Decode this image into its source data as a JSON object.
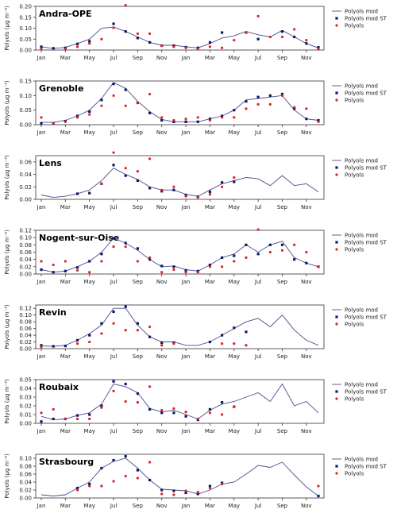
{
  "chart_data": [
    {
      "type": "line",
      "title": "Andra-OPE",
      "ylabel": "Polyols (µg m⁻³)",
      "ylim": [
        0,
        0.2
      ],
      "yticks": [
        "0.00",
        "0.05",
        "0.10",
        "0.15",
        "0.20"
      ],
      "xticks": [
        "Jan",
        "Mar",
        "May",
        "Jul",
        "Sep",
        "Nov",
        "Jan",
        "Mar",
        "May",
        "Jul",
        "Sep",
        "Nov"
      ],
      "legend": [
        "Polyols mod",
        "Polyols mod ST",
        "Polyols"
      ],
      "mod": [
        0.015,
        0.007,
        0.012,
        0.03,
        0.05,
        0.1,
        0.105,
        0.085,
        0.06,
        0.035,
        0.022,
        0.022,
        0.015,
        0.01,
        0.03,
        0.055,
        0.065,
        0.085,
        0.07,
        0.06,
        0.09,
        0.06,
        0.03,
        0.01
      ],
      "mod_st": [
        0.015,
        0.008,
        0.01,
        0.028,
        0.04,
        null,
        0.12,
        0.085,
        0.055,
        0.035,
        0.02,
        0.02,
        0.013,
        0.01,
        0.035,
        0.08,
        null,
        0.08,
        0.05,
        null,
        0.085,
        0.06,
        0.03,
        0.012
      ],
      "obs": [
        0.005,
        null,
        0.005,
        0.015,
        0.03,
        0.05,
        0.102,
        0.205,
        0.075,
        0.075,
        0.02,
        0.015,
        0.01,
        0.005,
        0.015,
        0.01,
        0.045,
        0.08,
        0.155,
        0.06,
        0.06,
        0.095,
        0.045,
        0.005
      ]
    },
    {
      "type": "line",
      "title": "Grenoble",
      "ylabel": "Polyols (µg m⁻³)",
      "ylim": [
        0,
        0.15
      ],
      "yticks": [
        "0.00",
        "0.05",
        "0.10",
        "0.15"
      ],
      "xticks": [
        "Jan",
        "Mar",
        "May",
        "Jul",
        "Sep",
        "Nov",
        "Jan",
        "Mar",
        "May",
        "Jul",
        "Sep",
        "Nov"
      ],
      "legend": [
        "Polyols mod",
        "Polyols mod ST",
        "Polyols"
      ],
      "mod": [
        0.008,
        0.008,
        0.015,
        0.03,
        0.05,
        0.09,
        0.145,
        0.125,
        0.08,
        0.045,
        0.018,
        0.01,
        0.01,
        0.01,
        0.02,
        0.03,
        0.05,
        0.085,
        0.09,
        0.095,
        0.1,
        0.05,
        0.02,
        0.015
      ],
      "mod_st": [
        0.005,
        0.005,
        0.012,
        0.03,
        0.045,
        0.085,
        0.14,
        0.12,
        0.075,
        0.04,
        0.015,
        0.01,
        0.01,
        0.01,
        0.02,
        0.03,
        0.05,
        0.08,
        0.095,
        0.1,
        0.105,
        0.055,
        0.02,
        0.015
      ],
      "obs": [
        0.025,
        0.005,
        0.01,
        0.025,
        0.035,
        0.065,
        0.1,
        0.065,
        0.075,
        0.105,
        0.025,
        0.015,
        0.02,
        0.025,
        0.015,
        0.025,
        0.025,
        0.055,
        0.07,
        0.07,
        0.1,
        0.06,
        0.055,
        0.01
      ]
    },
    {
      "type": "line",
      "title": "Lens",
      "ylabel": "Polyols (µg m⁻³)",
      "ylim": [
        0,
        0.07
      ],
      "yticks": [
        "0.00",
        "0.02",
        "0.04",
        "0.06"
      ],
      "xticks": [
        "Jan",
        "Mar",
        "May",
        "Jul",
        "Sep",
        "Nov",
        "Jan",
        "Mar",
        "May",
        "Jul",
        "Sep",
        "Nov"
      ],
      "legend": [
        "Polyols mod",
        "Polyols mod ST",
        "Polyols"
      ],
      "mod": [
        0.007,
        0.003,
        0.005,
        0.009,
        0.015,
        0.03,
        0.05,
        0.04,
        0.032,
        0.02,
        0.015,
        0.015,
        0.008,
        0.005,
        0.015,
        0.025,
        0.03,
        0.035,
        0.033,
        0.022,
        0.038,
        0.022,
        0.025,
        0.012
      ],
      "mod_st": [
        null,
        null,
        null,
        0.009,
        0.01,
        0.025,
        0.055,
        0.038,
        0.03,
        0.018,
        0.013,
        0.015,
        0.007,
        0.004,
        0.012,
        0.027,
        0.028,
        null,
        null,
        null,
        null,
        null,
        null,
        null
      ],
      "obs": [
        null,
        null,
        null,
        null,
        null,
        0.025,
        0.075,
        0.05,
        0.045,
        0.065,
        0.015,
        0.02,
        0.005,
        0.003,
        0.008,
        0.02,
        0.035,
        null,
        null,
        null,
        null,
        null,
        null,
        null
      ]
    },
    {
      "type": "line",
      "title": "Nogent-sur-Oise",
      "ylabel": "Polyols (µg m⁻³)",
      "ylim": [
        0,
        0.12
      ],
      "yticks": [
        "0.00",
        "0.02",
        "0.04",
        "0.06",
        "0.08",
        "0.10",
        "0.12"
      ],
      "xticks": [
        "Jan",
        "Mar",
        "May",
        "Jul",
        "Sep",
        "Nov",
        "Jan",
        "Mar",
        "May",
        "Jul",
        "Sep",
        "Nov"
      ],
      "legend": [
        "Polyols mod",
        "Polyols mod ST",
        "Polyols"
      ],
      "mod": [
        0.012,
        0.005,
        0.008,
        0.02,
        0.035,
        0.06,
        0.098,
        0.085,
        0.065,
        0.04,
        0.02,
        0.022,
        0.012,
        0.008,
        0.025,
        0.045,
        0.055,
        0.08,
        0.06,
        0.08,
        0.09,
        0.045,
        0.03,
        0.02
      ],
      "mod_st": [
        0.012,
        0.005,
        0.008,
        0.018,
        0.035,
        0.055,
        0.098,
        0.085,
        0.07,
        0.04,
        0.022,
        0.02,
        0.01,
        0.008,
        0.025,
        0.045,
        0.05,
        0.08,
        0.055,
        0.08,
        0.08,
        0.04,
        0.03,
        0.02
      ],
      "obs": [
        0.035,
        0.025,
        0.035,
        0.01,
        0.005,
        0.035,
        0.075,
        0.075,
        0.035,
        0.045,
        0.005,
        0.012,
        0.005,
        0.005,
        0.02,
        0.02,
        0.035,
        0.045,
        0.122,
        0.06,
        0.065,
        0.08,
        0.06,
        0.02
      ]
    },
    {
      "type": "line",
      "title": "Revin",
      "ylabel": "Polyols (µg m⁻³)",
      "ylim": [
        0,
        0.13
      ],
      "yticks": [
        "0.00",
        "0.02",
        "0.04",
        "0.06",
        "0.08",
        "0.10",
        "0.12"
      ],
      "xticks": [
        "Jan",
        "Mar",
        "May",
        "Jul",
        "Sep",
        "Nov",
        "Jan",
        "Mar",
        "May",
        "Jul",
        "Sep",
        "Nov"
      ],
      "legend": [
        "Polyols mod",
        "Polyols mod ST",
        "Polyols"
      ],
      "mod": [
        0.008,
        0.007,
        0.01,
        0.025,
        0.045,
        0.07,
        0.12,
        0.12,
        0.07,
        0.035,
        0.02,
        0.02,
        0.01,
        0.01,
        0.02,
        0.04,
        0.06,
        0.08,
        0.09,
        0.065,
        0.1,
        0.055,
        0.025,
        0.01
      ],
      "mod_st": [
        0.01,
        0.007,
        0.008,
        0.025,
        0.04,
        0.075,
        0.11,
        0.125,
        0.075,
        0.035,
        0.018,
        0.018,
        null,
        null,
        0.02,
        0.04,
        0.062,
        0.05,
        null,
        null,
        null,
        null,
        null,
        null
      ],
      "obs": [
        0.005,
        null,
        null,
        0.015,
        0.02,
        0.045,
        0.075,
        0.055,
        0.055,
        0.065,
        0.01,
        0.015,
        null,
        null,
        null,
        0.015,
        0.015,
        0.01,
        null,
        null,
        null,
        null,
        null,
        null
      ]
    },
    {
      "type": "line",
      "title": "Roubaix",
      "ylabel": "Polyols (µg m⁻³)",
      "ylim": [
        0,
        0.05
      ],
      "yticks": [
        "0.00",
        "0.01",
        "0.02",
        "0.03",
        "0.04",
        "0.05"
      ],
      "xticks": [
        "Jan",
        "Mar",
        "May",
        "Jul",
        "Sep",
        "Nov",
        "Jan",
        "Mar",
        "May",
        "Jul",
        "Sep",
        "Nov"
      ],
      "legend": [
        "Polyols mod",
        "Polyols mod ST",
        "Polyols"
      ],
      "mod": [
        0.008,
        0.004,
        0.005,
        0.009,
        0.012,
        0.022,
        0.045,
        0.042,
        0.035,
        0.017,
        0.013,
        0.015,
        0.01,
        0.005,
        0.015,
        0.022,
        0.025,
        0.03,
        0.035,
        0.025,
        0.045,
        0.02,
        0.025,
        0.012
      ],
      "mod_st": [
        0.002,
        0.005,
        0.005,
        0.009,
        0.01,
        0.02,
        0.048,
        0.045,
        0.034,
        0.016,
        0.012,
        0.012,
        0.008,
        0.004,
        0.016,
        0.024,
        0.019,
        null,
        null,
        null,
        null,
        null,
        null,
        null
      ],
      "obs": [
        0.012,
        0.016,
        0.005,
        0.005,
        0.005,
        0.018,
        0.037,
        0.025,
        0.024,
        0.042,
        0.015,
        0.017,
        0.013,
        0.005,
        0.012,
        0.01,
        0.019,
        null,
        null,
        null,
        null,
        null,
        null,
        null
      ]
    },
    {
      "type": "line",
      "title": "Strasbourg",
      "ylabel": "Polyols (µg m⁻³)",
      "ylim": [
        0,
        0.11
      ],
      "yticks": [
        "0.00",
        "0.02",
        "0.04",
        "0.06",
        "0.08",
        "0.10"
      ],
      "xticks": [
        "Jan",
        "Mar",
        "May",
        "Jul",
        "Sep",
        "Nov",
        "Jan",
        "Mar",
        "May",
        "Jul",
        "Sep",
        "Nov"
      ],
      "legend": [
        "Polyols mod",
        "Polyols mod ST",
        "Polyols"
      ],
      "mod": [
        0.008,
        0.005,
        0.008,
        0.025,
        0.04,
        0.075,
        0.092,
        0.1,
        0.075,
        0.045,
        0.022,
        0.02,
        0.018,
        0.01,
        0.02,
        0.035,
        0.04,
        0.06,
        0.082,
        0.077,
        0.09,
        0.058,
        0.028,
        0.005
      ],
      "mod_st": [
        null,
        null,
        null,
        0.025,
        0.035,
        0.075,
        0.095,
        0.105,
        0.07,
        0.045,
        0.02,
        0.018,
        0.013,
        0.01,
        0.03,
        0.038,
        null,
        null,
        null,
        null,
        null,
        null,
        null,
        0.005
      ],
      "obs": [
        null,
        null,
        null,
        0.02,
        0.03,
        0.03,
        0.042,
        0.055,
        0.05,
        0.09,
        0.01,
        0.008,
        0.018,
        0.015,
        0.025,
        0.035,
        null,
        null,
        null,
        null,
        null,
        null,
        null,
        0.03
      ]
    }
  ],
  "colors": {
    "mod": "#4a4f8e",
    "mod_st": "#0c1a6a",
    "obs": "#e02020"
  }
}
